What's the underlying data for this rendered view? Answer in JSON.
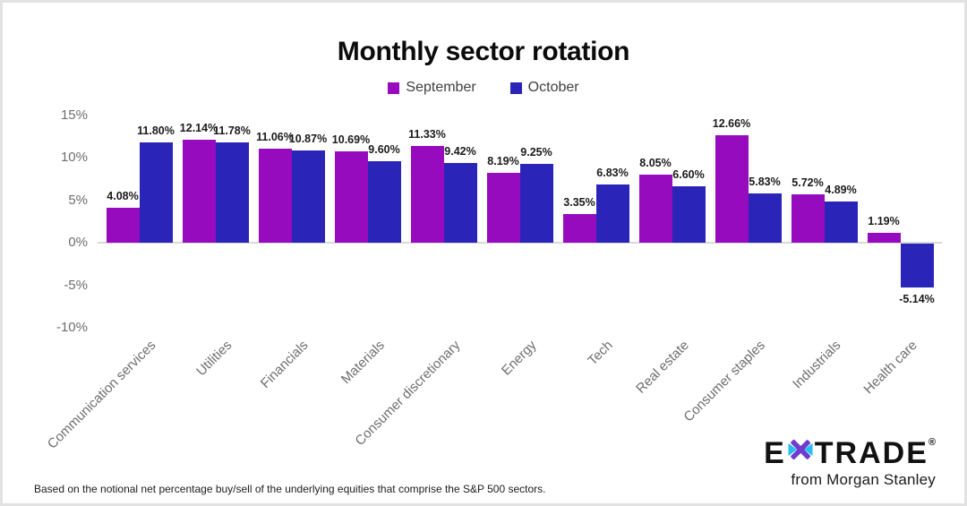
{
  "page": {
    "title": "Monthly sector rotation"
  },
  "legend": {
    "items": [
      {
        "label": "September"
      },
      {
        "label": "October"
      }
    ]
  },
  "chart_data": {
    "type": "bar",
    "title": "Monthly sector rotation",
    "categories": [
      "Communication services",
      "Utilities",
      "Financials",
      "Materials",
      "Consumer discretionary",
      "Energy",
      "Tech",
      "Real estate",
      "Consumer staples",
      "Industrials",
      "Health care"
    ],
    "series": [
      {
        "name": "September",
        "color": "#970BBE",
        "values": [
          4.08,
          12.14,
          11.06,
          10.69,
          11.33,
          8.19,
          3.35,
          8.05,
          12.66,
          5.72,
          1.19
        ]
      },
      {
        "name": "October",
        "color": "#2B24B8",
        "values": [
          11.8,
          11.78,
          10.87,
          9.6,
          9.42,
          9.25,
          6.83,
          6.6,
          5.83,
          4.89,
          -5.14
        ]
      }
    ],
    "y_ticks": [
      15,
      10,
      5,
      0,
      -5,
      -10
    ],
    "ylim": [
      -10,
      15
    ],
    "y_tick_suffix": "%",
    "value_label_decimals": 2,
    "value_label_suffix": "%",
    "grid": "off",
    "legend_position": "top",
    "axis_text_color": "#6e6e6e",
    "value_label_color": "#1a1a1a",
    "baseline_color": "#d9d9d9"
  },
  "footnote": "Based on the notional net percentage buy/sell of the underlying equities that comprise the S&P 500 sectors.",
  "logo": {
    "part1": "E",
    "part2": "TRADE",
    "registered": "®",
    "tagline": "from Morgan Stanley",
    "asterisk_purple": "#6f3ccf",
    "asterisk_cyan": "#24beef"
  }
}
